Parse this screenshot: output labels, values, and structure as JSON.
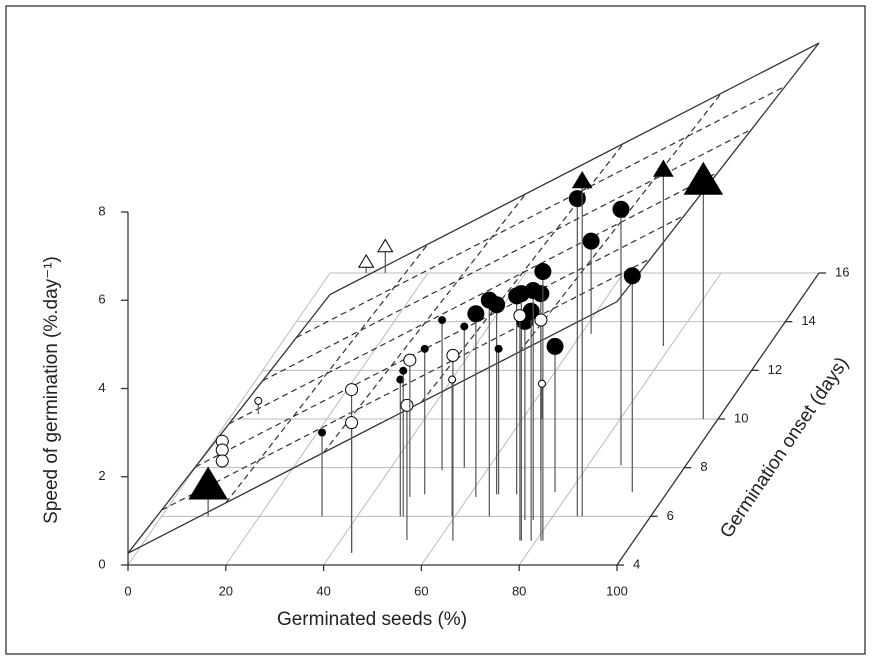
{
  "chart_data": {
    "type": "scatter3d",
    "x_label": "Germinated seeds (%)",
    "y_label": "Germination onset (days)",
    "z_label": "Speed of germination (%.day⁻¹)",
    "xlim": [
      0,
      100
    ],
    "xticks": [
      0,
      20,
      40,
      60,
      80,
      100
    ],
    "ylim": [
      4,
      16
    ],
    "yticks": [
      4,
      6,
      8,
      10,
      12,
      14,
      16
    ],
    "zlim": [
      0,
      8
    ],
    "zticks": [
      0,
      2,
      4,
      6,
      8
    ],
    "grid": true,
    "plane_coefficients": [
      0.52,
      0.057,
      -0.063
    ],
    "series": [
      {
        "marker": "filled-circle",
        "size": 8,
        "color": "#000",
        "x": [
          61.5,
          67,
          65.4,
          69.5,
          77,
          74.8,
          79,
          76.5,
          71,
          81.4,
          77,
          85,
          62,
          86.7,
          92.8
        ],
        "y": [
          6.8,
          6,
          6.9,
          6.9,
          5,
          5.85,
          5,
          5.85,
          7.9,
          5,
          7,
          6,
          13.5,
          8.1,
          7
        ],
        "z": [
          4.15,
          4.9,
          4.3,
          4.5,
          5.6,
          4.5,
          5.2,
          5.2,
          4.0,
          6.1,
          3.3,
          7.2,
          2.1,
          5.8,
          4.9
        ]
      },
      {
        "marker": "filled-circle",
        "size": 3.5,
        "color": "#000",
        "x": [
          32.8,
          48.8,
          49.4,
          50.7,
          50.8,
          55,
          65.8
        ],
        "y": [
          6,
          6,
          6,
          6.9,
          7.9,
          8,
          6.9
        ],
        "z": [
          1.9,
          3.1,
          3.3,
          3.3,
          3.4,
          3.2,
          3.3
        ]
      },
      {
        "marker": "open-circle",
        "size": 6,
        "color": "#000",
        "x": [
          44,
          44,
          53.5,
          48,
          63,
          76.7,
          81,
          5.5,
          5.5,
          5.5
        ],
        "y": [
          4.5,
          4.5,
          5.03,
          6.8,
          5,
          5,
          5,
          8,
          8,
          8
        ],
        "z": [
          3.7,
          2.95,
          3.05,
          3.1,
          4.2,
          5.1,
          5.0,
          0.6,
          0.4,
          0.15
        ]
      },
      {
        "marker": "open-circle",
        "size": 3.5,
        "color": "#000",
        "x": [
          59.4,
          64,
          5.3
        ],
        "y": [
          6,
          10,
          10.2
        ],
        "z": [
          3.1,
          0.8,
          0.3
        ]
      },
      {
        "marker": "filled-triangle",
        "size": 9,
        "color": "#000",
        "x": [
          86,
          78.5
        ],
        "y": [
          6,
          13
        ],
        "z": [
          7.6,
          4.0
        ]
      },
      {
        "marker": "filled-triangle",
        "size": 18,
        "color": "#000",
        "x": [
          9.5,
          97
        ],
        "y": [
          6,
          10
        ],
        "z": [
          0.7,
          5.4
        ]
      },
      {
        "marker": "open-triangle",
        "size": 7,
        "color": "#000",
        "x": [
          7.4,
          11.3
        ],
        "y": [
          16,
          16
        ],
        "z": [
          0.25,
          0.6
        ]
      }
    ]
  }
}
